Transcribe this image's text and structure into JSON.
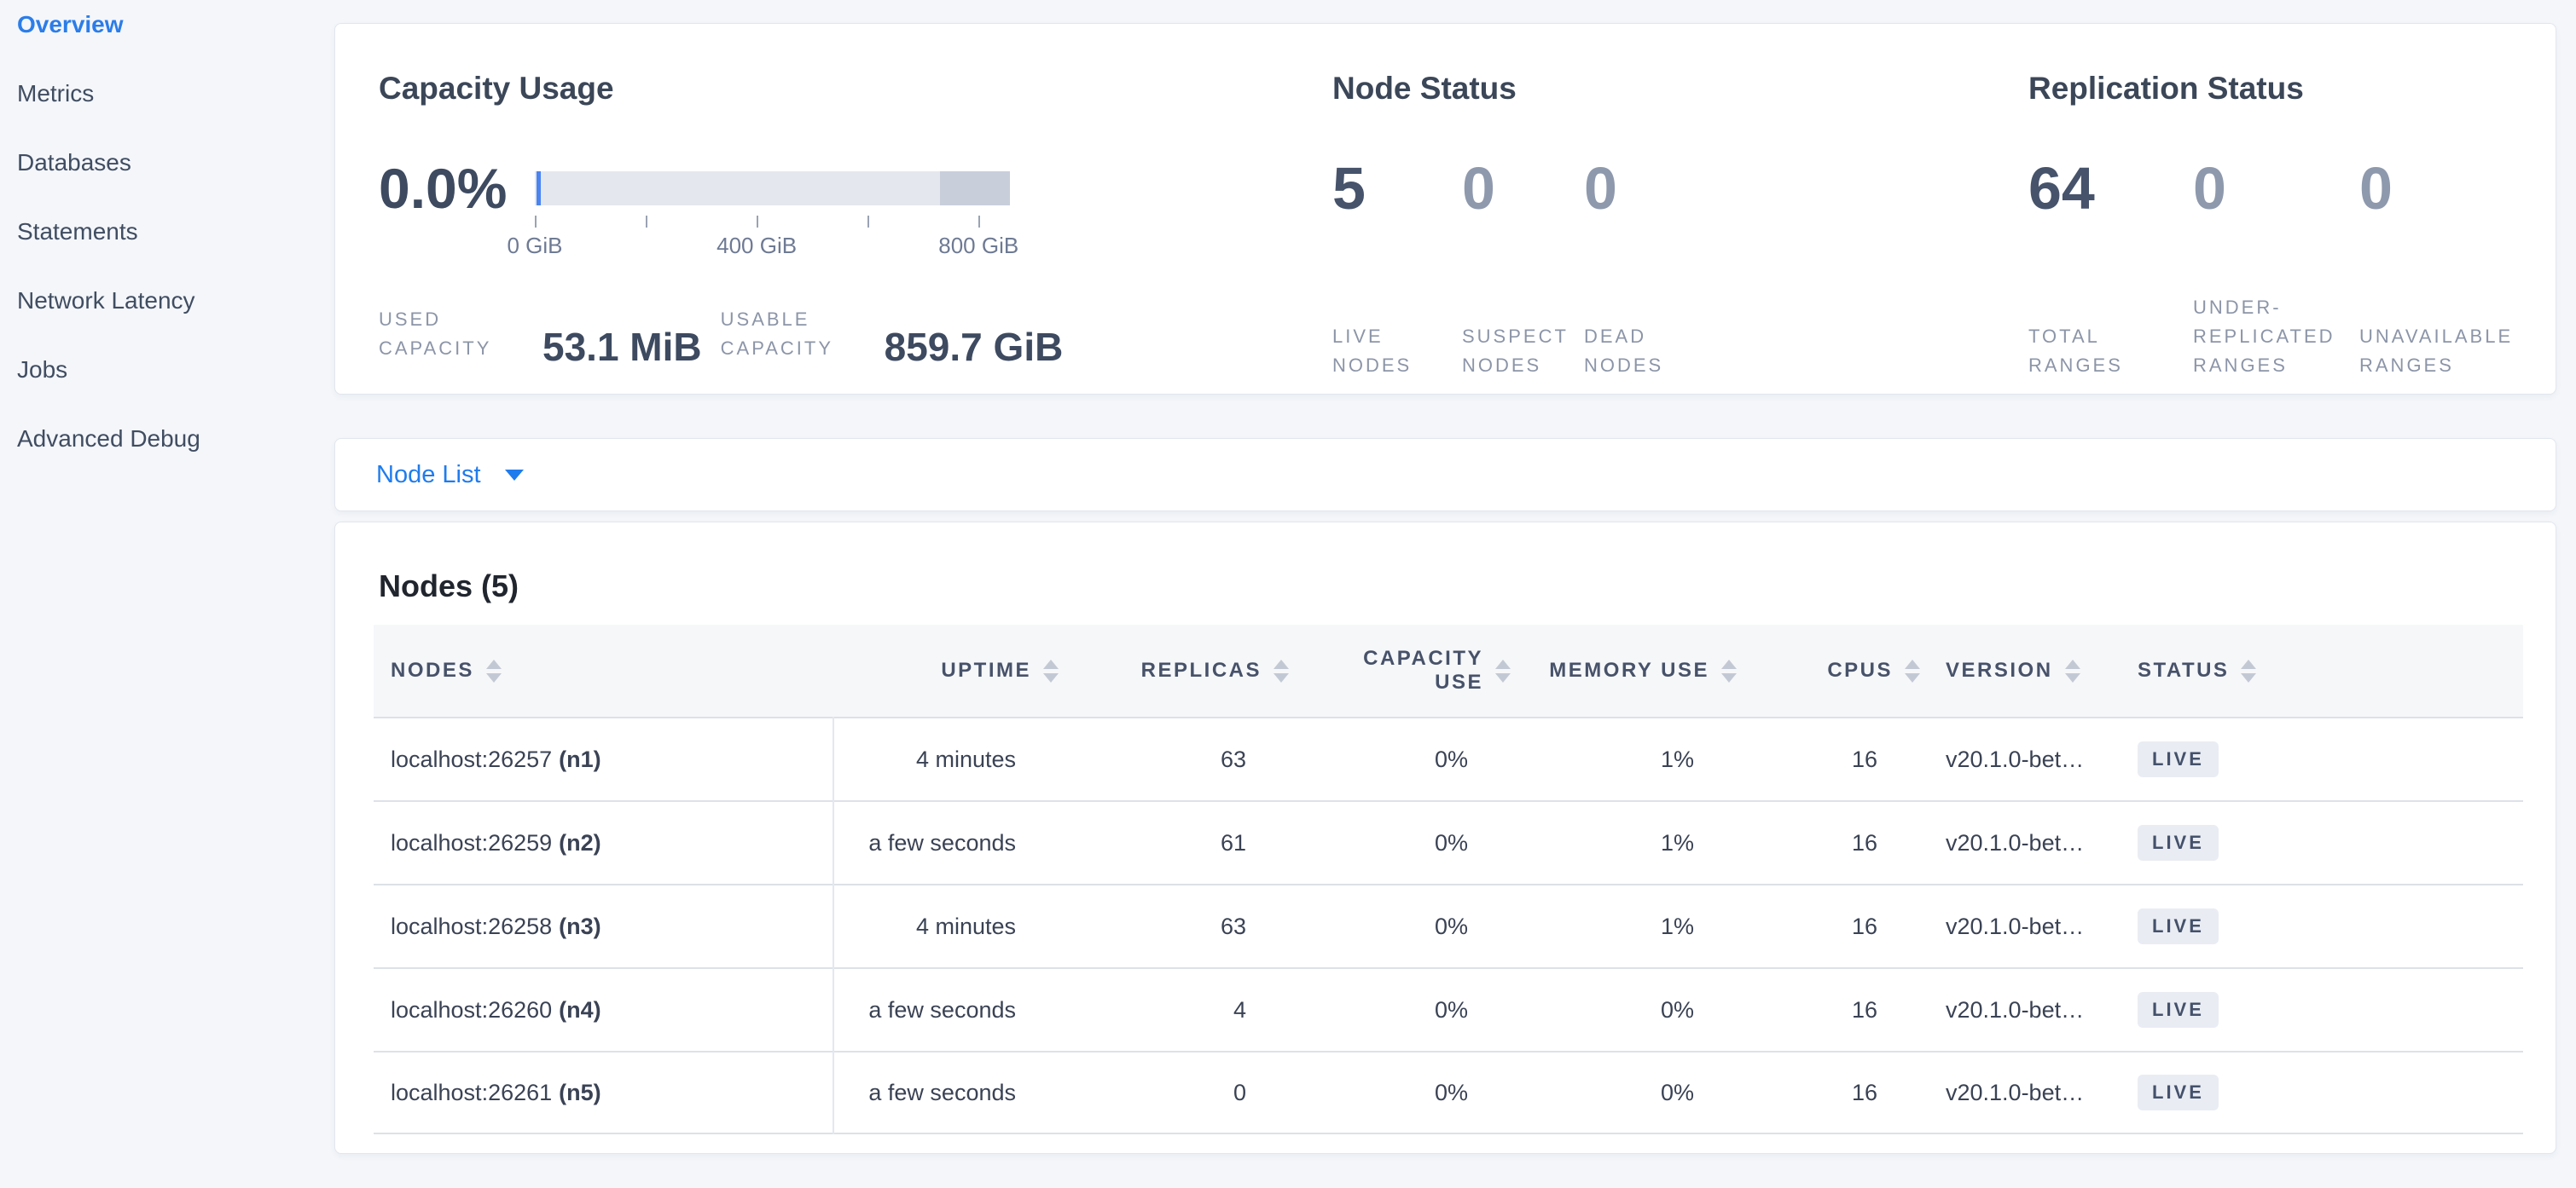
{
  "sidebar": {
    "items": [
      {
        "label": "Overview",
        "active": true
      },
      {
        "label": "Metrics",
        "active": false
      },
      {
        "label": "Databases",
        "active": false
      },
      {
        "label": "Statements",
        "active": false
      },
      {
        "label": "Network Latency",
        "active": false
      },
      {
        "label": "Jobs",
        "active": false
      },
      {
        "label": "Advanced Debug",
        "active": false
      }
    ]
  },
  "summary": {
    "capacity": {
      "title": "Capacity Usage",
      "percent": "0.0%",
      "axis_ticks_gib": [
        0,
        200,
        400,
        600,
        800
      ],
      "axis_labels": [
        "0 GiB",
        "400 GiB",
        "800 GiB"
      ],
      "stats": [
        {
          "label": "USED CAPACITY",
          "value": "53.1 MiB"
        },
        {
          "label": "USABLE CAPACITY",
          "value": "859.7 GiB"
        }
      ]
    },
    "node_status": {
      "title": "Node Status",
      "stats": [
        {
          "value": "5",
          "label": "LIVE NODES"
        },
        {
          "value": "0",
          "label": "SUSPECT NODES"
        },
        {
          "value": "0",
          "label": "DEAD NODES"
        }
      ]
    },
    "replication": {
      "title": "Replication Status",
      "stats": [
        {
          "value": "64",
          "label": "TOTAL RANGES"
        },
        {
          "value": "0",
          "label": "UNDER-REPLICATED RANGES"
        },
        {
          "value": "0",
          "label": "UNAVAILABLE RANGES"
        }
      ]
    }
  },
  "view_selector": {
    "label": "Node List"
  },
  "nodes_section": {
    "heading": "Nodes (5)",
    "table": {
      "columns": [
        {
          "label": "NODES",
          "align": "left"
        },
        {
          "label": "UPTIME",
          "align": "right"
        },
        {
          "label": "REPLICAS",
          "align": "right"
        },
        {
          "label": "CAPACITY USE",
          "align": "right"
        },
        {
          "label": "MEMORY USE",
          "align": "right"
        },
        {
          "label": "CPUS",
          "align": "right"
        },
        {
          "label": "VERSION",
          "align": "left"
        },
        {
          "label": "STATUS",
          "align": "left"
        }
      ],
      "rows": [
        {
          "node": "localhost:26257",
          "id": "(n1)",
          "uptime": "4 minutes",
          "replicas": "63",
          "capacity_use": "0%",
          "memory_use": "1%",
          "cpus": "16",
          "version": "v20.1.0-bet…",
          "status": "LIVE"
        },
        {
          "node": "localhost:26259",
          "id": "(n2)",
          "uptime": "a few seconds",
          "replicas": "61",
          "capacity_use": "0%",
          "memory_use": "1%",
          "cpus": "16",
          "version": "v20.1.0-bet…",
          "status": "LIVE"
        },
        {
          "node": "localhost:26258",
          "id": "(n3)",
          "uptime": "4 minutes",
          "replicas": "63",
          "capacity_use": "0%",
          "memory_use": "1%",
          "cpus": "16",
          "version": "v20.1.0-bet…",
          "status": "LIVE"
        },
        {
          "node": "localhost:26260",
          "id": "(n4)",
          "uptime": "a few seconds",
          "replicas": "4",
          "capacity_use": "0%",
          "memory_use": "0%",
          "cpus": "16",
          "version": "v20.1.0-bet…",
          "status": "LIVE"
        },
        {
          "node": "localhost:26261",
          "id": "(n5)",
          "uptime": "a few seconds",
          "replicas": "0",
          "capacity_use": "0%",
          "memory_use": "0%",
          "cpus": "16",
          "version": "v20.1.0-bet…",
          "status": "LIVE"
        }
      ]
    }
  },
  "colors": {
    "accent_blue": "#1f7ced",
    "page_bg": "#f4f6fa",
    "bar_bg": "#e4e7ed",
    "bar_other": "#c9cedb",
    "bar_used": "#4a84f2",
    "badge_bg": "#e9ecf3"
  }
}
